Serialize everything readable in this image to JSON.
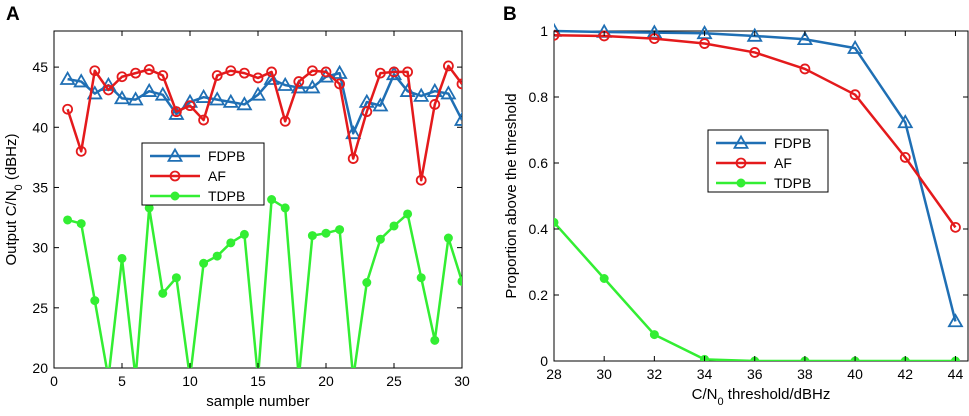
{
  "chart_data": [
    {
      "panel": "A",
      "type": "line",
      "xlabel": "sample number",
      "ylabel": "Output C/N",
      "ylabel_sub": "0",
      "ylabel_tail": " (dBHz)",
      "xlim": [
        0,
        30
      ],
      "ylim": [
        20,
        48
      ],
      "xticks": [
        0,
        5,
        10,
        15,
        20,
        25,
        30
      ],
      "yticks": [
        20,
        25,
        30,
        35,
        40,
        45
      ],
      "legend_position": "middle-left",
      "series": [
        {
          "name": "FDPB",
          "color": "#1f6fb4",
          "marker": "triangle",
          "x": [
            1,
            2,
            3,
            4,
            5,
            6,
            7,
            8,
            9,
            10,
            11,
            12,
            13,
            14,
            15,
            16,
            17,
            18,
            19,
            20,
            21,
            22,
            23,
            24,
            25,
            26,
            27,
            28,
            29,
            30
          ],
          "values": [
            44.0,
            43.8,
            42.8,
            43.5,
            42.4,
            42.3,
            43.0,
            42.7,
            41.1,
            42.1,
            42.5,
            42.3,
            42.1,
            41.9,
            42.7,
            44.0,
            43.5,
            43.3,
            43.3,
            44.2,
            44.5,
            39.5,
            42.1,
            41.8,
            44.4,
            43.0,
            42.6,
            43.0,
            42.8,
            40.6
          ]
        },
        {
          "name": "AF",
          "color": "#e41a1c",
          "marker": "circle",
          "x": [
            1,
            2,
            3,
            4,
            5,
            6,
            7,
            8,
            9,
            10,
            11,
            12,
            13,
            14,
            15,
            16,
            17,
            18,
            19,
            20,
            21,
            22,
            23,
            24,
            25,
            26,
            27,
            28,
            29,
            30
          ],
          "values": [
            41.5,
            38.0,
            44.7,
            43.1,
            44.2,
            44.5,
            44.8,
            44.3,
            41.3,
            41.8,
            40.6,
            44.3,
            44.7,
            44.5,
            44.1,
            44.6,
            40.5,
            43.8,
            44.7,
            44.6,
            43.6,
            37.4,
            41.3,
            44.5,
            44.6,
            44.6,
            35.6,
            41.9,
            45.1,
            43.6
          ]
        },
        {
          "name": "TDPB",
          "color": "#33ee33",
          "marker": "filled-circle",
          "x": [
            1,
            2,
            3,
            4,
            5,
            6,
            7,
            8,
            9,
            10,
            11,
            12,
            13,
            14,
            15,
            16,
            17,
            18,
            19,
            20,
            21,
            22,
            23,
            24,
            25,
            26,
            27,
            28,
            29,
            30
          ],
          "values": [
            32.3,
            32.0,
            25.6,
            null,
            29.1,
            null,
            33.3,
            26.2,
            27.5,
            null,
            28.7,
            29.3,
            30.4,
            31.1,
            null,
            34.0,
            33.3,
            null,
            31.0,
            31.2,
            31.5,
            null,
            27.1,
            30.7,
            31.8,
            32.8,
            27.5,
            22.3,
            30.8,
            27.2
          ]
        }
      ]
    },
    {
      "panel": "B",
      "type": "line",
      "xlabel": "C/N",
      "xlabel_sub": "0",
      "xlabel_tail": " threshold/dBHz",
      "ylabel": "Proportion above the threshold",
      "xlim": [
        28,
        44.5
      ],
      "ylim": [
        0,
        1
      ],
      "xticks": [
        28,
        30,
        32,
        34,
        36,
        38,
        40,
        42,
        44
      ],
      "yticks": [
        0,
        0.2,
        0.4,
        0.6,
        0.8,
        1
      ],
      "yticklabels": [
        "0",
        "0.2",
        "0.4",
        "0.6",
        "0.8",
        "1"
      ],
      "legend_position": "middle-center",
      "series": [
        {
          "name": "FDPB",
          "color": "#1f6fb4",
          "marker": "triangle",
          "x": [
            28,
            30,
            32,
            34,
            36,
            38,
            40,
            42,
            44
          ],
          "values": [
            1.0,
            0.997,
            0.995,
            0.993,
            0.985,
            0.975,
            0.948,
            0.723,
            0.12
          ]
        },
        {
          "name": "AF",
          "color": "#e41a1c",
          "marker": "circle",
          "x": [
            28,
            30,
            32,
            34,
            36,
            38,
            40,
            42,
            44
          ],
          "values": [
            0.987,
            0.985,
            0.977,
            0.962,
            0.935,
            0.885,
            0.807,
            0.617,
            0.405
          ]
        },
        {
          "name": "TDPB",
          "color": "#33ee33",
          "marker": "filled-circle",
          "x": [
            28,
            30,
            32,
            34,
            36,
            38,
            40,
            42,
            44
          ],
          "values": [
            0.42,
            0.25,
            0.08,
            0.005,
            0.0,
            0.0,
            0.0,
            0.0,
            0.0
          ]
        }
      ]
    }
  ]
}
